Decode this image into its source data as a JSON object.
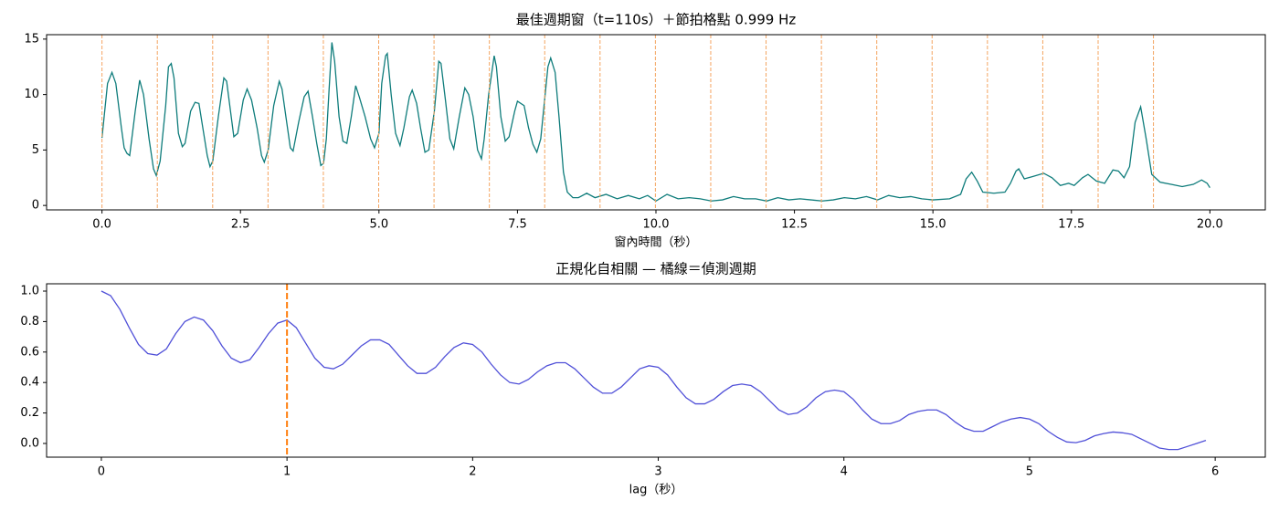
{
  "chart_data": [
    {
      "type": "line",
      "title": "最佳週期窗（t=110s）＋節拍格點 0.999 Hz",
      "xlabel": "窗內時間（秒）",
      "x": [
        0,
        0.1,
        0.18,
        0.25,
        0.35,
        0.4,
        0.45,
        0.5,
        0.6,
        0.68,
        0.75,
        0.85,
        0.93,
        0.98,
        1.05,
        1.15,
        1.2,
        1.25,
        1.3,
        1.38,
        1.45,
        1.5,
        1.6,
        1.68,
        1.75,
        1.82,
        1.9,
        1.95,
        2.0,
        2.1,
        2.2,
        2.25,
        2.32,
        2.38,
        2.45,
        2.55,
        2.62,
        2.7,
        2.8,
        2.88,
        2.93,
        3.0,
        3.1,
        3.2,
        3.25,
        3.32,
        3.4,
        3.45,
        3.55,
        3.65,
        3.72,
        3.8,
        3.88,
        3.95,
        4.0,
        4.05,
        4.1,
        4.15,
        4.2,
        4.28,
        4.35,
        4.42,
        4.5,
        4.58,
        4.65,
        4.75,
        4.85,
        4.92,
        5.0,
        5.05,
        5.12,
        5.15,
        5.22,
        5.3,
        5.38,
        5.45,
        5.55,
        5.6,
        5.68,
        5.75,
        5.83,
        5.9,
        6.0,
        6.08,
        6.12,
        6.2,
        6.28,
        6.35,
        6.45,
        6.55,
        6.62,
        6.7,
        6.78,
        6.85,
        6.9,
        6.98,
        7.08,
        7.12,
        7.2,
        7.28,
        7.35,
        7.45,
        7.5,
        7.62,
        7.7,
        7.78,
        7.85,
        7.92,
        8.05,
        8.1,
        8.18,
        8.25,
        8.33,
        8.4,
        8.5,
        8.6,
        8.75,
        8.9,
        9.1,
        9.3,
        9.5,
        9.7,
        9.85,
        10.0,
        10.2,
        10.4,
        10.6,
        10.8,
        11.0,
        11.2,
        11.4,
        11.6,
        11.8,
        12.0,
        12.2,
        12.4,
        12.6,
        12.8,
        13.0,
        13.2,
        13.4,
        13.6,
        13.8,
        14.0,
        14.2,
        14.4,
        14.6,
        14.8,
        15.0,
        15.3,
        15.5,
        15.6,
        15.7,
        15.8,
        15.9,
        16.1,
        16.3,
        16.4,
        16.5,
        16.55,
        16.65,
        16.8,
        17.0,
        17.15,
        17.3,
        17.45,
        17.55,
        17.7,
        17.8,
        17.95,
        18.1,
        18.25,
        18.35,
        18.45,
        18.55,
        18.65,
        18.75,
        18.85,
        18.95,
        19.1,
        19.3,
        19.5,
        19.7,
        19.85,
        19.95,
        20.0
      ],
      "series": [
        {
          "color": "#0e7c7b",
          "values": [
            6.1,
            11.0,
            12.0,
            11,
            7,
            5.2,
            4.7,
            4.5,
            8.5,
            11.3,
            10,
            6,
            3.3,
            2.7,
            4,
            9,
            12.5,
            12.8,
            11.5,
            6.5,
            5.3,
            5.6,
            8.5,
            9.3,
            9.2,
            7,
            4.5,
            3.5,
            4,
            8,
            11.5,
            11.2,
            8.5,
            6.2,
            6.5,
            9.5,
            10.5,
            9.5,
            7,
            4.5,
            3.9,
            5,
            9,
            11.2,
            10.5,
            8,
            5.2,
            4.9,
            7.5,
            9.8,
            10.3,
            8,
            5.5,
            3.6,
            3.8,
            6,
            10.5,
            14.7,
            13,
            8,
            5.8,
            5.6,
            8,
            10.8,
            9.7,
            8,
            6,
            5.2,
            6.5,
            11,
            13.5,
            13.7,
            10,
            6.5,
            5.4,
            7,
            9.8,
            10.4,
            9.2,
            7,
            4.8,
            5,
            8.5,
            13,
            12.8,
            9.5,
            6,
            5.1,
            8,
            10.6,
            10,
            8,
            5,
            4.2,
            6,
            10,
            13.5,
            12.5,
            8,
            5.8,
            6.2,
            8.5,
            9.4,
            9,
            7,
            5.5,
            4.8,
            6,
            12.5,
            13.3,
            12,
            8,
            3,
            1.2,
            0.7,
            0.7,
            1.1,
            0.7,
            1.0,
            0.6,
            0.9,
            0.6,
            0.9,
            0.4,
            1.0,
            0.6,
            0.7,
            0.6,
            0.4,
            0.5,
            0.8,
            0.6,
            0.6,
            0.4,
            0.7,
            0.5,
            0.6,
            0.5,
            0.4,
            0.5,
            0.7,
            0.6,
            0.8,
            0.5,
            0.9,
            0.7,
            0.8,
            0.6,
            0.5,
            0.6,
            1.0,
            2.4,
            3.0,
            2.2,
            1.2,
            1.1,
            1.2,
            2.0,
            3.1,
            3.3,
            2.4,
            2.6,
            2.9,
            2.5,
            1.8,
            2.0,
            1.8,
            2.5,
            2.8,
            2.2,
            2.0,
            3.2,
            3.1,
            2.5,
            3.5,
            7.5,
            8.9,
            6,
            2.8,
            2.1,
            1.9,
            1.7,
            1.9,
            2.3,
            2.0,
            1.6
          ]
        }
      ],
      "vlines": [
        0,
        0.999,
        1.998,
        2.997,
        3.996,
        4.995,
        5.994,
        6.993,
        7.992,
        8.991,
        9.99,
        10.989,
        11.988,
        12.987,
        13.986,
        14.985,
        15.984,
        16.983,
        17.982,
        18.981
      ],
      "vline_color": "#f4a460",
      "vline_width": 1,
      "xlim": [
        -1,
        21
      ],
      "ylim": [
        -0.4,
        15.4
      ],
      "xticks": [
        {
          "value": 0,
          "label": "0.0"
        },
        2.5,
        {
          "value": 5,
          "label": "5.0"
        },
        7.5,
        {
          "value": 10,
          "label": "10.0"
        },
        12.5,
        {
          "value": 15,
          "label": "15.0"
        },
        17.5,
        {
          "value": 20,
          "label": "20.0"
        }
      ],
      "yticks": [
        0,
        5,
        10,
        15
      ]
    },
    {
      "type": "line",
      "title": "正規化自相關 — 橘線＝偵測週期",
      "xlabel": "lag（秒）",
      "x": [
        0,
        0.05,
        0.1,
        0.15,
        0.2,
        0.25,
        0.3,
        0.35,
        0.4,
        0.45,
        0.5,
        0.55,
        0.6,
        0.65,
        0.7,
        0.75,
        0.8,
        0.85,
        0.9,
        0.95,
        1.0,
        1.05,
        1.1,
        1.15,
        1.2,
        1.25,
        1.3,
        1.35,
        1.4,
        1.45,
        1.5,
        1.55,
        1.6,
        1.65,
        1.7,
        1.75,
        1.8,
        1.85,
        1.9,
        1.95,
        2.0,
        2.05,
        2.1,
        2.15,
        2.2,
        2.25,
        2.3,
        2.35,
        2.4,
        2.45,
        2.5,
        2.55,
        2.6,
        2.65,
        2.7,
        2.75,
        2.8,
        2.85,
        2.9,
        2.95,
        3.0,
        3.05,
        3.1,
        3.15,
        3.2,
        3.25,
        3.3,
        3.35,
        3.4,
        3.45,
        3.5,
        3.55,
        3.6,
        3.65,
        3.7,
        3.75,
        3.8,
        3.85,
        3.9,
        3.95,
        4.0,
        4.05,
        4.1,
        4.15,
        4.2,
        4.25,
        4.3,
        4.35,
        4.4,
        4.45,
        4.5,
        4.55,
        4.6,
        4.65,
        4.7,
        4.75,
        4.8,
        4.85,
        4.9,
        4.95,
        5.0,
        5.05,
        5.1,
        5.15,
        5.2,
        5.25,
        5.3,
        5.35,
        5.4,
        5.45,
        5.5,
        5.55,
        5.6,
        5.65,
        5.7,
        5.75,
        5.8,
        5.85,
        5.9,
        5.95
      ],
      "series": [
        {
          "color": "#5050d8",
          "values": [
            1.0,
            0.97,
            0.88,
            0.76,
            0.65,
            0.59,
            0.58,
            0.62,
            0.72,
            0.8,
            0.83,
            0.81,
            0.74,
            0.64,
            0.56,
            0.53,
            0.55,
            0.63,
            0.72,
            0.79,
            0.81,
            0.76,
            0.66,
            0.56,
            0.5,
            0.49,
            0.52,
            0.58,
            0.64,
            0.68,
            0.68,
            0.65,
            0.58,
            0.51,
            0.46,
            0.46,
            0.5,
            0.57,
            0.63,
            0.66,
            0.65,
            0.6,
            0.52,
            0.45,
            0.4,
            0.39,
            0.42,
            0.47,
            0.51,
            0.53,
            0.53,
            0.49,
            0.43,
            0.37,
            0.33,
            0.33,
            0.37,
            0.43,
            0.49,
            0.51,
            0.5,
            0.45,
            0.37,
            0.3,
            0.26,
            0.26,
            0.29,
            0.34,
            0.38,
            0.39,
            0.38,
            0.34,
            0.28,
            0.22,
            0.19,
            0.2,
            0.24,
            0.3,
            0.34,
            0.35,
            0.34,
            0.29,
            0.22,
            0.16,
            0.13,
            0.13,
            0.15,
            0.19,
            0.21,
            0.22,
            0.22,
            0.19,
            0.14,
            0.1,
            0.08,
            0.08,
            0.11,
            0.14,
            0.16,
            0.17,
            0.16,
            0.13,
            0.08,
            0.04,
            0.01,
            0.005,
            0.02,
            0.05,
            0.065,
            0.075,
            0.07,
            0.06,
            0.03,
            0.0,
            -0.03,
            -0.04,
            -0.04,
            -0.02,
            0.0,
            0.02
          ]
        }
      ],
      "vlines": [
        1.0
      ],
      "vline_color": "#ff7f0e",
      "vline_width": 2,
      "xlim": [
        -0.295,
        6.27
      ],
      "ylim": [
        -0.09,
        1.048
      ],
      "xticks": [
        0,
        1,
        2,
        3,
        4,
        5,
        6
      ],
      "yticks": [
        {
          "value": 0,
          "label": "0.0"
        },
        0.2,
        0.4,
        0.6,
        0.8,
        {
          "value": 1,
          "label": "1.0"
        }
      ]
    }
  ]
}
